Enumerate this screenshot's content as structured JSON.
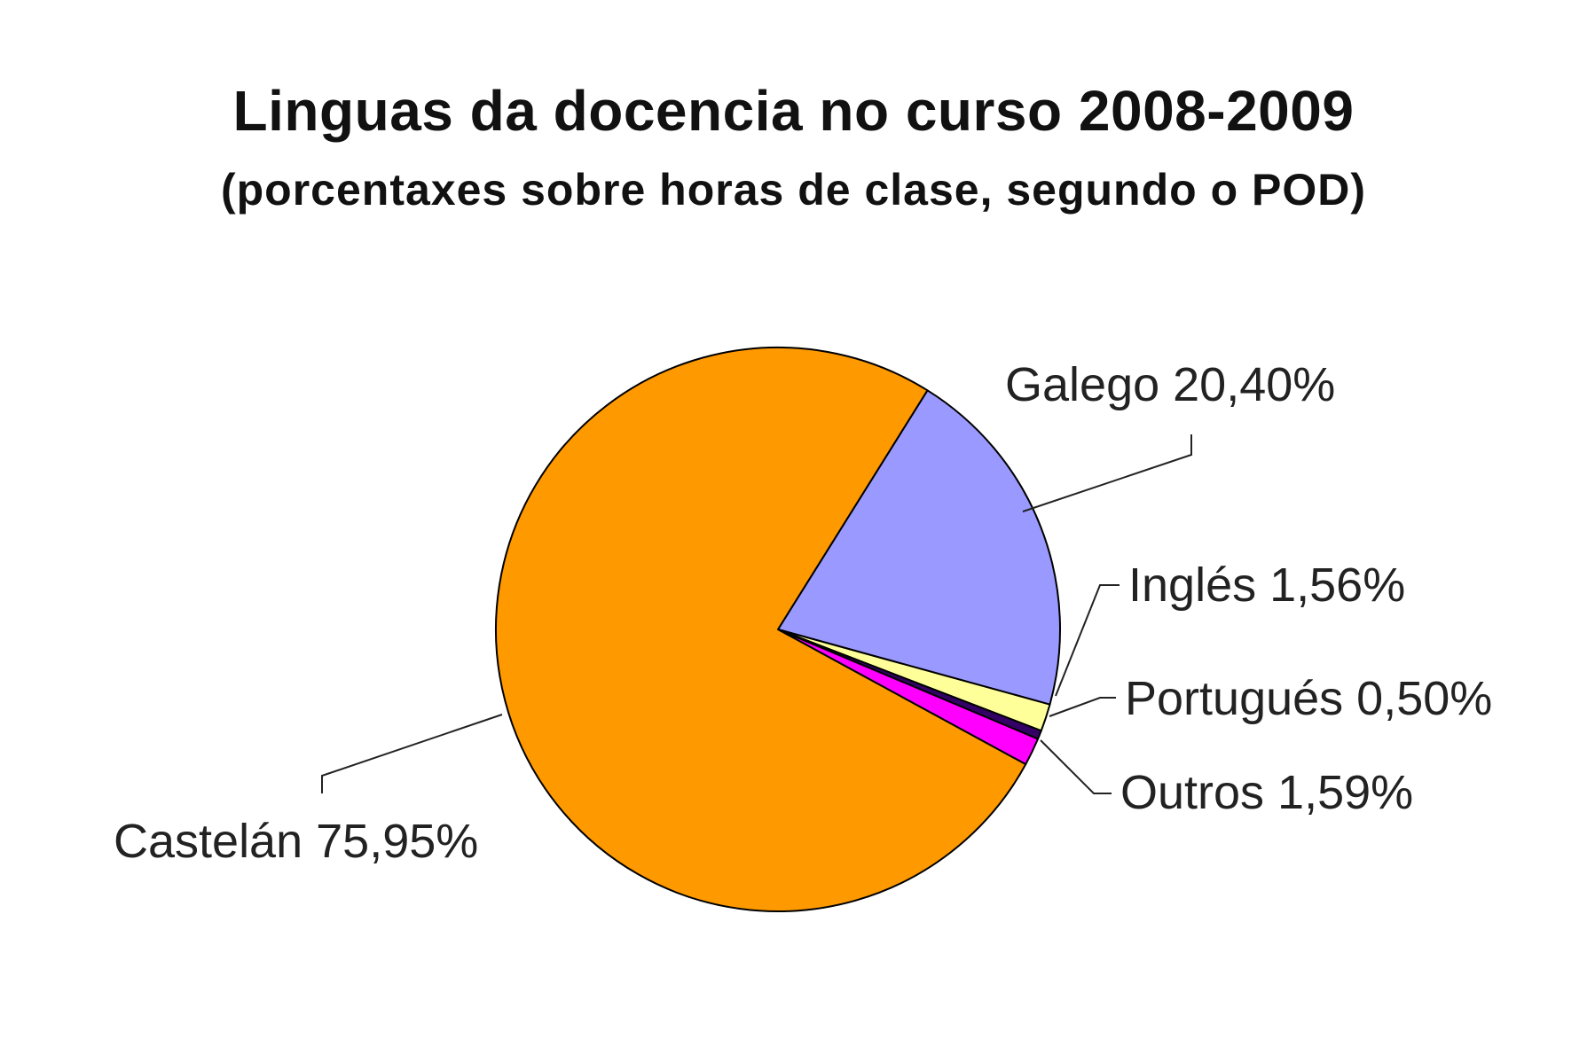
{
  "chart_data": {
    "type": "pie",
    "title": "Linguas da docencia no curso 2008-2009",
    "subtitle": "(porcentaxes sobre horas de clase, segundo o POD)",
    "slices": [
      {
        "label": "Galego 20,40%",
        "value": 20.4,
        "color": "#9999FF"
      },
      {
        "label": "Inglés 1,56%",
        "value": 1.56,
        "color": "#FFFF99"
      },
      {
        "label": "Portugués 0,50%",
        "value": 0.5,
        "color": "#330066"
      },
      {
        "label": "Outros 1,59%",
        "value": 1.59,
        "color": "#FF00FF"
      },
      {
        "label": "Castelán 75,95%",
        "value": 75.95,
        "color": "#FF9900"
      }
    ],
    "legend": "none",
    "data_labels": "outside with leader lines"
  }
}
